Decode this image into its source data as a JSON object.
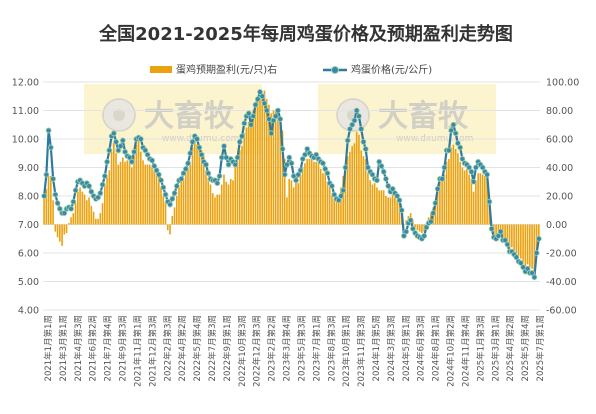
{
  "chart_data": {
    "type": "bar+line",
    "title": "全国2021-2025年每周鸡蛋价格及预期盈利走势图",
    "legend_position": "top",
    "grid": true,
    "watermark": {
      "brand": "大畜牧",
      "site": "www.dxumu.com"
    },
    "colors": {
      "bar": "#EBA20E",
      "line": "#2F7AA0",
      "marker_fill": "#3A87B0",
      "marker_stroke": "#9ED39F"
    },
    "series": [
      {
        "name": "蛋鸡预期盈利(元/只)右",
        "kind": "bar",
        "axis": "right"
      },
      {
        "name": "鸡蛋价格(元/公斤)",
        "kind": "line",
        "axis": "left"
      }
    ],
    "axes": {
      "left": {
        "min": 4.0,
        "max": 12.0,
        "step": 1.0,
        "decimals": 2
      },
      "right": {
        "min": -60,
        "max": 100,
        "step": 20,
        "decimals": 2
      }
    },
    "x_labels": [
      "2021年1月第1周",
      "2021年3月第1周",
      "2021年4月第3周",
      "2021年6月第2周",
      "2021年7月第4周",
      "2021年9月第3周",
      "2021年11月第1周",
      "2021年12月第3周",
      "2022年2月第3周",
      "2022年4月第2周",
      "2022年5月第4周",
      "2022年7月第3周",
      "2022年9月第1周",
      "2022年10月第3周",
      "2022年12月第3周",
      "2023年2月第2周",
      "2023年3月第4周",
      "2023年5月第3周",
      "2023年7月第1周",
      "2023年8月第3周",
      "2023年10月第1周",
      "2023年11月第3周",
      "2024年1月第5周",
      "2024年3月第3周",
      "2024年5月第1周",
      "2024年6月第3周",
      "2024年8月第1周",
      "2024年10月第2周",
      "2024年11月第4周",
      "2025年1月第3周",
      "2025年3月第1周",
      "2025年4月第2周",
      "2025年5月第4周",
      "2025年7月第1周"
    ],
    "price": [
      8.0,
      8.75,
      10.3,
      9.7,
      8.6,
      8.05,
      7.75,
      7.55,
      7.4,
      7.4,
      7.55,
      7.6,
      7.55,
      7.8,
      8.2,
      8.5,
      8.55,
      8.45,
      8.35,
      8.45,
      8.35,
      8.15,
      8.0,
      7.9,
      7.95,
      8.1,
      8.4,
      8.7,
      9.2,
      9.6,
      10.1,
      10.2,
      9.9,
      9.6,
      9.75,
      9.95,
      9.55,
      9.4,
      9.35,
      9.2,
      9.55,
      10.0,
      10.05,
      10.0,
      9.7,
      9.6,
      9.45,
      9.3,
      9.25,
      9.05,
      8.9,
      8.75,
      8.55,
      8.3,
      8.05,
      7.8,
      7.7,
      7.9,
      8.1,
      8.35,
      8.55,
      8.6,
      8.8,
      8.95,
      9.15,
      9.5,
      9.9,
      10.1,
      10.0,
      9.7,
      9.45,
      9.2,
      9.1,
      8.8,
      8.6,
      8.55,
      8.55,
      8.45,
      8.7,
      9.35,
      9.75,
      9.35,
      9.1,
      9.3,
      9.2,
      9.1,
      9.35,
      9.9,
      10.1,
      10.55,
      10.8,
      10.9,
      10.5,
      10.8,
      11.2,
      11.4,
      11.65,
      11.5,
      11.25,
      11.0,
      10.7,
      10.2,
      10.65,
      10.8,
      11.0,
      10.7,
      9.65,
      8.75,
      9.1,
      9.35,
      9.15,
      8.7,
      8.55,
      8.75,
      8.9,
      9.3,
      9.45,
      9.65,
      9.5,
      9.4,
      9.35,
      9.45,
      9.3,
      9.2,
      9.15,
      8.95,
      8.8,
      8.45,
      8.35,
      8.05,
      7.9,
      7.85,
      8.0,
      8.2,
      9.0,
      9.95,
      10.35,
      10.5,
      10.65,
      11.0,
      10.8,
      10.35,
      9.9,
      9.65,
      9.0,
      8.85,
      8.75,
      8.6,
      8.55,
      9.2,
      9.05,
      8.85,
      8.6,
      8.35,
      8.15,
      8.25,
      8.1,
      8.0,
      7.85,
      7.5,
      6.6,
      6.75,
      7.05,
      7.15,
      6.85,
      6.7,
      6.6,
      6.55,
      6.5,
      6.6,
      6.9,
      7.05,
      7.1,
      7.4,
      7.75,
      8.25,
      8.6,
      8.6,
      9.0,
      9.6,
      9.6,
      10.3,
      10.5,
      10.2,
      9.85,
      9.7,
      9.3,
      9.15,
      9.1,
      9.0,
      8.85,
      8.5,
      9.0,
      9.2,
      9.1,
      9.0,
      8.85,
      8.75,
      7.8,
      6.85,
      6.55,
      6.5,
      6.6,
      6.75,
      6.45,
      6.45,
      6.3,
      6.05,
      6.05,
      5.95,
      5.85,
      5.7,
      5.65,
      5.5,
      5.35,
      5.45,
      5.3,
      5.3,
      5.15,
      6.0,
      6.5
    ],
    "profit": [
      20.0,
      25.0,
      34.0,
      34.0,
      17.0,
      -5.0,
      -9.0,
      -12.0,
      -15.0,
      -7.0,
      -6.0,
      1.0,
      5.0,
      8.0,
      15.0,
      23.0,
      26.0,
      23.0,
      21.0,
      17.0,
      19.0,
      13.0,
      9.0,
      4.0,
      4.0,
      8.0,
      15.0,
      28.0,
      33.0,
      38.0,
      51.0,
      57.0,
      50.0,
      42.0,
      44.0,
      47.0,
      44.0,
      45.0,
      46.0,
      40.0,
      48.0,
      56.0,
      60.0,
      51.0,
      45.0,
      42.0,
      42.0,
      42.0,
      40.0,
      38.0,
      38.0,
      35.0,
      26.0,
      20.0,
      16.0,
      -4.0,
      -7.0,
      6.0,
      12.0,
      20.0,
      26.0,
      30.0,
      32.0,
      41.0,
      39.0,
      42.0,
      54.0,
      60.0,
      56.0,
      55.0,
      52.0,
      50.0,
      38.0,
      33.0,
      28.0,
      22.0,
      19.0,
      21.0,
      21.0,
      28.0,
      35.0,
      30.0,
      28.0,
      32.0,
      31.0,
      40.0,
      44.0,
      52.0,
      55.0,
      64.0,
      68.0,
      72.0,
      72.0,
      80.0,
      84.0,
      89.0,
      95.0,
      92.0,
      94.0,
      88.0,
      84.0,
      78.0,
      80.0,
      81.0,
      80.0,
      76.0,
      66.0,
      46.0,
      19.0,
      32.0,
      31.0,
      26.0,
      30.0,
      29.0,
      35.0,
      40.0,
      43.0,
      46.0,
      46.0,
      46.0,
      44.0,
      44.0,
      44.0,
      39.0,
      36.0,
      38.0,
      30.0,
      27.0,
      20.0,
      18.0,
      16.0,
      17.0,
      26.0,
      34.0,
      37.0,
      48.0,
      51.0,
      55.0,
      57.0,
      65.0,
      63.0,
      52.0,
      48.0,
      46.0,
      36.0,
      31.0,
      28.0,
      29.0,
      26.0,
      24.0,
      24.0,
      24.0,
      20.0,
      19.0,
      19.0,
      21.0,
      19.0,
      17.0,
      15.0,
      10.0,
      0.0,
      3.0,
      6.0,
      8.0,
      2.0,
      -2.0,
      -4.0,
      -5.0,
      -6.0,
      -5.0,
      1.0,
      5.0,
      8.0,
      12.0,
      17.0,
      25.0,
      30.0,
      30.0,
      35.0,
      44.0,
      46.0,
      54.0,
      56.0,
      53.0,
      50.0,
      44.0,
      40.0,
      38.0,
      39.0,
      35.0,
      32.0,
      23.0,
      31.0,
      36.0,
      36.0,
      35.0,
      34.0,
      32.0,
      18.0,
      -2.0,
      -7.0,
      -9.0,
      -7.0,
      -6.0,
      -9.0,
      -10.0,
      -12.0,
      -17.0,
      -16.0,
      -18.0,
      -20.0,
      -22.0,
      -24.0,
      -26.0,
      -30.0,
      -28.0,
      -30.0,
      -31.0,
      -33.0,
      -20.0,
      -10.0
    ]
  }
}
